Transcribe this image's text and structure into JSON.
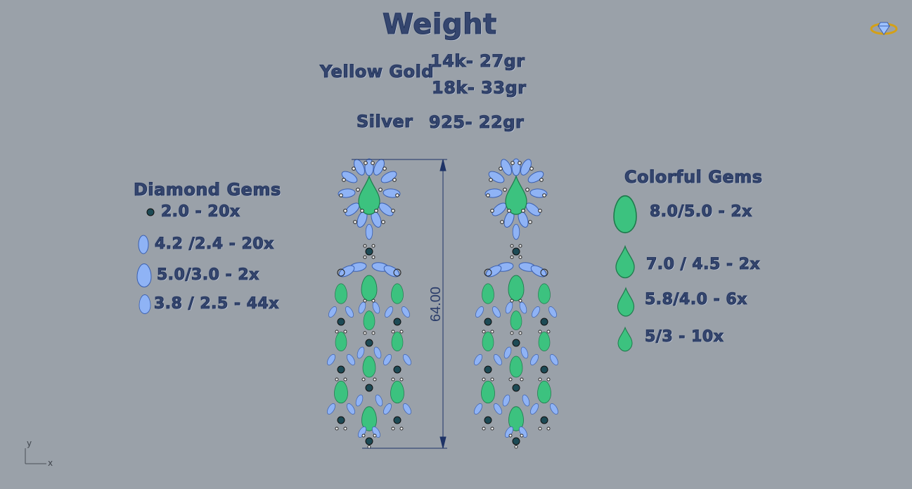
{
  "weight": {
    "title": "Weight",
    "yellow_gold_label": "Yellow Gold",
    "gold_14k": "14k- 27gr",
    "gold_18k": "18k- 33gr",
    "silver_label": "Silver",
    "silver_925": "925- 22gr"
  },
  "diamond_gems": {
    "heading": "Diamond  Gems",
    "items": [
      {
        "label": "2.0 - 20x",
        "shape": "round-icon"
      },
      {
        "label": "4.2 /2.4 - 20x",
        "shape": "marquise-icon"
      },
      {
        "label": "5.0/3.0 - 2x",
        "shape": "pear-icon"
      },
      {
        "label": "3.8 / 2.5 - 44x",
        "shape": "pear-icon"
      }
    ]
  },
  "colorful_gems": {
    "heading": "Colorful Gems",
    "items": [
      {
        "label": "8.0/5.0 - 2x",
        "shape": "pear-icon"
      },
      {
        "label": "7.0 / 4.5 - 2x",
        "shape": "pear-icon"
      },
      {
        "label": "5.8/4.0 - 6x",
        "shape": "pear-icon"
      },
      {
        "label": "5/3 - 10x",
        "shape": "pear-icon"
      }
    ]
  },
  "dimension": {
    "value": "64.00"
  },
  "axis": {
    "y": "y",
    "x": "x"
  },
  "colors": {
    "background": "#9aa1a9",
    "text": "#35466f",
    "diamond_blue": "#8fb3f5",
    "emerald_green": "#3cc27f",
    "sapphire_dark": "#1d4a55",
    "dimension_line": "#1e3366"
  }
}
